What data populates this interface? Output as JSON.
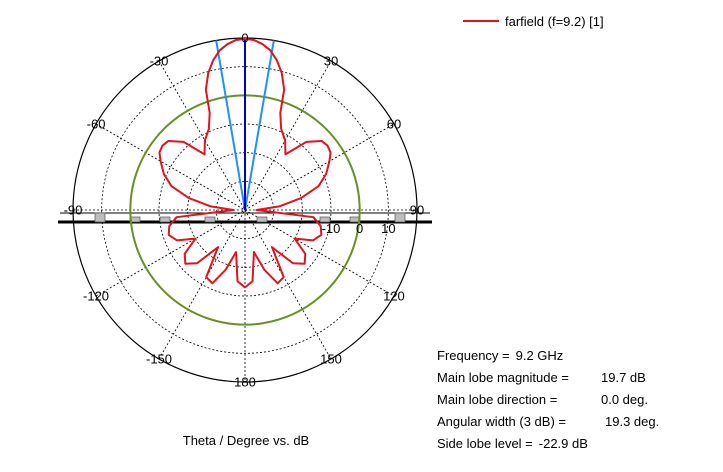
{
  "chart_data": {
    "type": "polar",
    "xlabel": "Theta / Degree vs. dB",
    "angle_ticks": [
      {
        "deg": 0,
        "label": "0"
      },
      {
        "deg": 30,
        "label": "-30"
      },
      {
        "deg": 60,
        "label": "-60"
      },
      {
        "deg": 90,
        "label": "-90"
      },
      {
        "deg": 120,
        "label": "-120"
      },
      {
        "deg": 150,
        "label": "-150"
      },
      {
        "deg": 180,
        "label": "180"
      },
      {
        "deg": -150,
        "label": "150"
      },
      {
        "deg": -120,
        "label": "120"
      },
      {
        "deg": -90,
        "label": "90"
      },
      {
        "deg": -60,
        "label": "60"
      },
      {
        "deg": -30,
        "label": "30"
      }
    ],
    "radial_range_db": [
      -40,
      20
    ],
    "radial_ticks": [
      {
        "db": 10,
        "label": "10"
      },
      {
        "db": 0,
        "label": "0"
      },
      {
        "db": -10,
        "label": "-10"
      }
    ],
    "grid": true,
    "legend_position": "top-right",
    "series": [
      {
        "name": "farfield (f=9.2) [1]",
        "color": "#e0141e",
        "theta_deg": [
          0,
          3,
          6,
          9,
          12,
          15,
          18,
          20,
          24,
          30,
          36,
          42,
          48,
          52,
          56,
          60,
          66,
          72,
          78,
          84,
          90,
          96,
          102,
          108,
          114,
          120,
          126,
          132,
          138,
          144,
          150,
          156,
          162,
          168,
          174,
          180,
          -174,
          -168,
          -162,
          -156,
          -150,
          -144,
          -138,
          -132,
          -126,
          -120,
          -114,
          -108,
          -102,
          -96,
          -90,
          -84,
          -78,
          -72,
          -66,
          -60,
          -56,
          -52,
          -48,
          -42,
          -36,
          -30,
          -24,
          -20,
          -18,
          -15,
          -12,
          -9,
          -6,
          -3
        ],
        "gain_db": [
          19.7,
          19.4,
          18.2,
          16.4,
          13.4,
          9.5,
          4.2,
          -4.0,
          -9.0,
          -12.0,
          -16.0,
          -8.0,
          -4.0,
          -3.5,
          -4.0,
          -6.0,
          -9.0,
          -13.0,
          -20.0,
          -28.0,
          -36.0,
          -16.0,
          -13.0,
          -12.0,
          -14.0,
          -20.0,
          -14.0,
          -12.0,
          -15.0,
          -24.0,
          -13.0,
          -12.0,
          -18.0,
          -25.0,
          -15.0,
          -13.0,
          -15.0,
          -25.0,
          -18.0,
          -12.0,
          -13.0,
          -24.0,
          -15.0,
          -12.0,
          -14.0,
          -20.0,
          -14.0,
          -12.0,
          -13.0,
          -16.0,
          -36.0,
          -28.0,
          -20.0,
          -13.0,
          -9.0,
          -6.0,
          -4.0,
          -3.5,
          -4.0,
          -8.0,
          -16.0,
          -12.0,
          -9.0,
          -4.0,
          4.2,
          9.5,
          13.4,
          16.4,
          18.2,
          19.4
        ]
      }
    ],
    "reference_circle_db": 0,
    "reference_circle_color": "#6b8e23",
    "beam_width_lines_deg": [
      -9.65,
      9.65
    ],
    "beam_width_line_color": "#1e90ff",
    "main_lobe_line_color": "#0000cd",
    "info": {
      "frequency_label": "Frequency =",
      "frequency_value": "9.2 GHz",
      "main_lobe_magnitude_label": "Main lobe magnitude =",
      "main_lobe_magnitude_value": "19.7 dB",
      "main_lobe_direction_label": "Main lobe direction =",
      "main_lobe_direction_value": "0.0 deg.",
      "angular_width_label": "Angular width (3 dB) =",
      "angular_width_value": "19.3 deg.",
      "side_lobe_level_label": "Side lobe level =",
      "side_lobe_level_value": "-22.9 dB"
    }
  }
}
